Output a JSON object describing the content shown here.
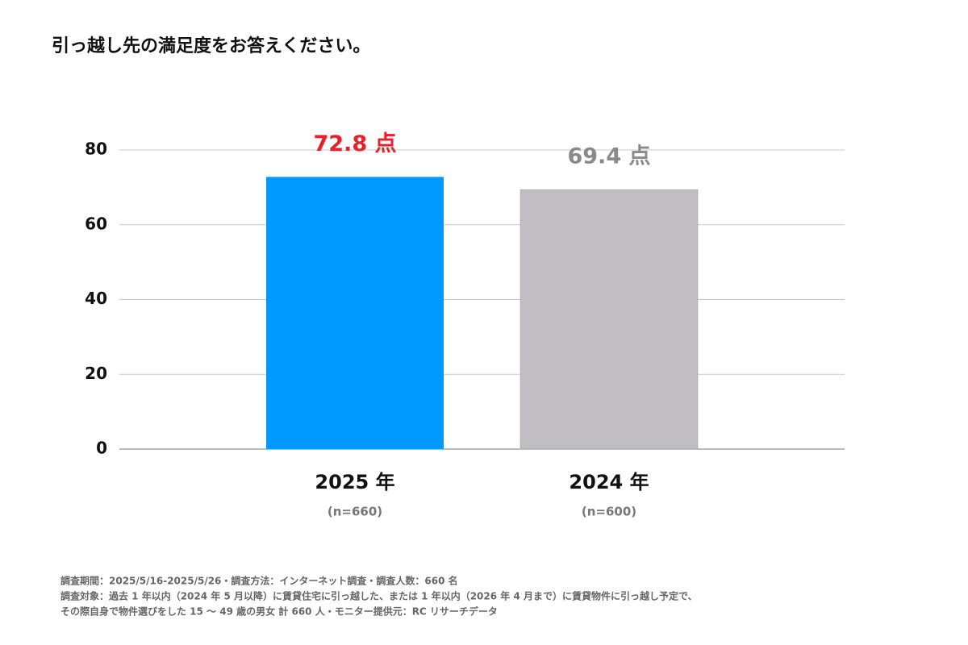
{
  "chart_data": {
    "type": "bar",
    "title": "引っ越し先の満足度をお答えください。",
    "categories": [
      "2025 年",
      "2024 年"
    ],
    "category_subtitles": [
      "(n=660)",
      "(n=600)"
    ],
    "values": [
      72.8,
      69.4
    ],
    "value_labels": [
      "72.8 点",
      "69.4 点"
    ],
    "colors": [
      "#0099ff",
      "#c0bec2"
    ],
    "value_label_colors": [
      "#e8202a",
      "#8a8a8a"
    ],
    "ylim": [
      0,
      80
    ],
    "yticks": [
      0,
      20,
      40,
      60,
      80
    ],
    "grid": true,
    "notes": [
      "調査期間：2025/5/16-2025/5/26・調査方法：インターネット調査・調査人数：660 名",
      "調査対象：過去 1 年以内（2024 年 5 月以降）に賃貸住宅に引っ越した、または 1 年以内（2026 年 4 月まで）に賃貸物件に引っ越し予定で、",
      "その際自身で物件選びをした 15 ～ 49 歳の男女 計 660 人・モニター提供元：RC リサーチデータ"
    ]
  }
}
